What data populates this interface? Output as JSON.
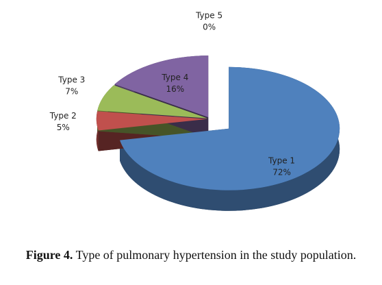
{
  "chart_data": {
    "type": "pie3d",
    "categories": [
      "Type 1",
      "Type 2",
      "Type 3",
      "Type 4",
      "Type 5"
    ],
    "values": [
      72,
      5,
      7,
      16,
      0
    ],
    "value_labels": [
      "72%",
      "5%",
      "7%",
      "16%",
      "0%"
    ],
    "colors": [
      "#4f81bd",
      "#c0504d",
      "#9bbb59",
      "#8064a2",
      "#4bacc6"
    ]
  },
  "caption": {
    "label": "Figure 4.",
    "text": "Type of pulmonary hypertension in the study population."
  }
}
